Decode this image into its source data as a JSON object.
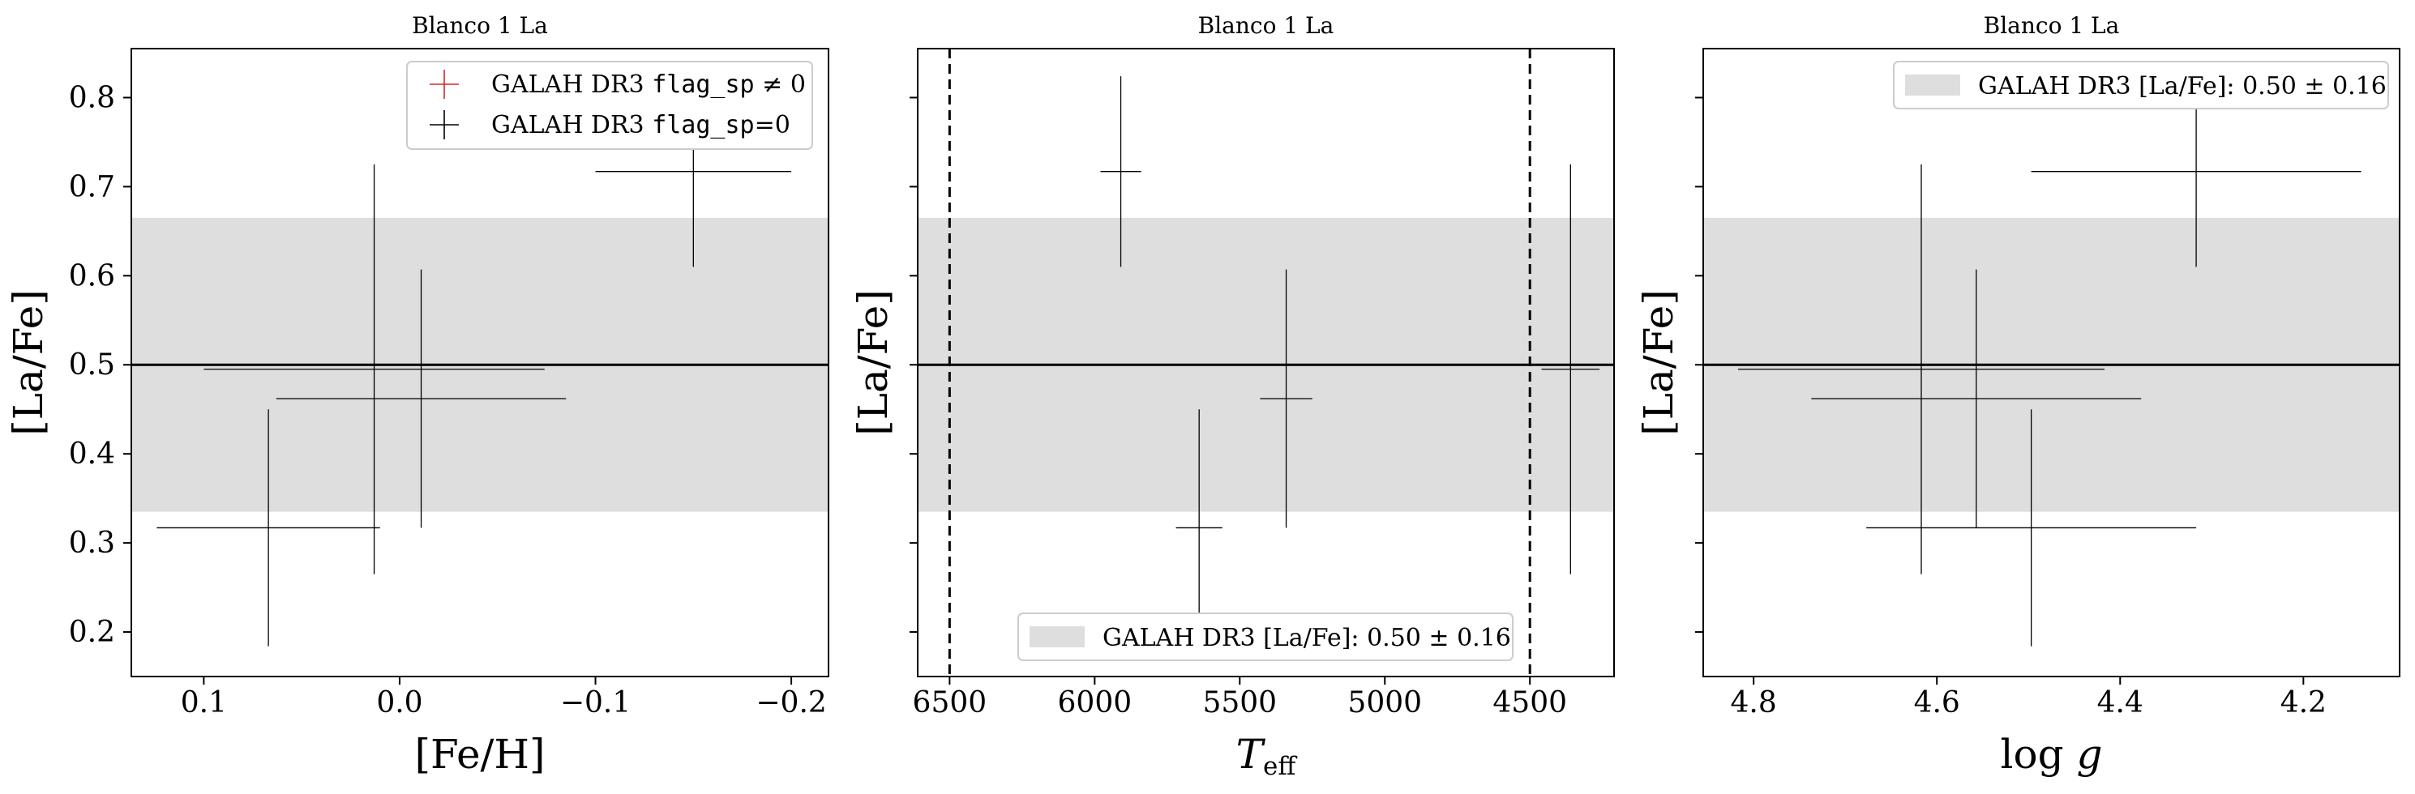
{
  "colors": {
    "band": "#dedede",
    "error": "#000000",
    "flagged": "#d62728",
    "mean_line": "#000000"
  },
  "chart_data": [
    {
      "type": "errorbar",
      "title": "Blanco 1 La",
      "xlabel": "[Fe/H]",
      "ylabel": "[La/Fe]",
      "xlim": [
        0.137,
        -0.219
      ],
      "ylim": [
        0.15,
        0.855
      ],
      "x_inverted": true,
      "xticks": [
        0.1,
        0.0,
        -0.1,
        -0.2
      ],
      "xtick_labels": [
        "0.1",
        "0.0",
        "−0.1",
        "−0.2"
      ],
      "yticks": [
        0.2,
        0.3,
        0.4,
        0.5,
        0.6,
        0.7,
        0.8
      ],
      "ytick_labels": [
        "0.2",
        "0.3",
        "0.4",
        "0.5",
        "0.6",
        "0.7",
        "0.8"
      ],
      "show_yticklabels": true,
      "mean": 0.5,
      "band": [
        0.335,
        0.665
      ],
      "points": [
        {
          "x": 0.067,
          "y": 0.317,
          "xerr": 0.057,
          "yerr": 0.133
        },
        {
          "x": 0.013,
          "y": 0.495,
          "xerr": 0.087,
          "yerr": 0.23
        },
        {
          "x": -0.011,
          "y": 0.462,
          "xerr": 0.074,
          "yerr": 0.145
        },
        {
          "x": -0.15,
          "y": 0.717,
          "xerr": 0.05,
          "yerr": 0.107
        }
      ],
      "legend": {
        "position": "upper right",
        "entries": [
          {
            "symbol": "cross",
            "color": "#d62728",
            "pre": "GALAH DR3 ",
            "code": "flag_sp",
            "post": " ≠ 0"
          },
          {
            "symbol": "cross",
            "color": "#000000",
            "pre": "GALAH DR3 ",
            "code": "flag_sp",
            "post": "=0"
          }
        ]
      }
    },
    {
      "type": "errorbar",
      "title": "Blanco 1 La",
      "xlabel": "T_eff",
      "ylabel": "[La/Fe]",
      "xlim": [
        6610,
        4210
      ],
      "ylim": [
        0.15,
        0.855
      ],
      "x_inverted": true,
      "xticks": [
        6500,
        6000,
        5500,
        5000,
        4500
      ],
      "xtick_labels": [
        "6500",
        "6000",
        "5500",
        "5000",
        "4500"
      ],
      "yticks": [
        0.2,
        0.3,
        0.4,
        0.5,
        0.6,
        0.7,
        0.8
      ],
      "ytick_labels": [],
      "show_yticklabels": false,
      "mean": 0.5,
      "band": [
        0.335,
        0.665
      ],
      "vlines": [
        6500,
        4500
      ],
      "points": [
        {
          "x": 5910,
          "y": 0.717,
          "xerr": 70,
          "yerr": 0.107
        },
        {
          "x": 5640,
          "y": 0.317,
          "xerr": 80,
          "yerr": 0.133
        },
        {
          "x": 5340,
          "y": 0.462,
          "xerr": 90,
          "yerr": 0.145
        },
        {
          "x": 4360,
          "y": 0.495,
          "xerr": 100,
          "yerr": 0.23
        }
      ],
      "legend": {
        "position": "lower center",
        "entries": [
          {
            "symbol": "band",
            "text": "GALAH DR3 [La/Fe]: 0.50 ± 0.16"
          }
        ]
      }
    },
    {
      "type": "errorbar",
      "title": "Blanco 1 La",
      "xlabel": "log g",
      "ylabel": "[La/Fe]",
      "xlim": [
        4.855,
        4.095
      ],
      "ylim": [
        0.15,
        0.855
      ],
      "x_inverted": true,
      "xticks": [
        4.8,
        4.6,
        4.4,
        4.2
      ],
      "xtick_labels": [
        "4.8",
        "4.6",
        "4.4",
        "4.2"
      ],
      "yticks": [
        0.2,
        0.3,
        0.4,
        0.5,
        0.6,
        0.7,
        0.8
      ],
      "ytick_labels": [],
      "show_yticklabels": false,
      "mean": 0.5,
      "band": [
        0.335,
        0.665
      ],
      "points": [
        {
          "x": 4.617,
          "y": 0.495,
          "xerr": 0.2,
          "yerr": 0.23
        },
        {
          "x": 4.557,
          "y": 0.462,
          "xerr": 0.18,
          "yerr": 0.145
        },
        {
          "x": 4.497,
          "y": 0.317,
          "xerr": 0.18,
          "yerr": 0.133
        },
        {
          "x": 4.317,
          "y": 0.717,
          "xerr": 0.18,
          "yerr": 0.107
        }
      ],
      "legend": {
        "position": "upper right",
        "entries": [
          {
            "symbol": "band",
            "text": "GALAH DR3 [La/Fe]: 0.50 ± 0.16"
          }
        ]
      }
    }
  ]
}
